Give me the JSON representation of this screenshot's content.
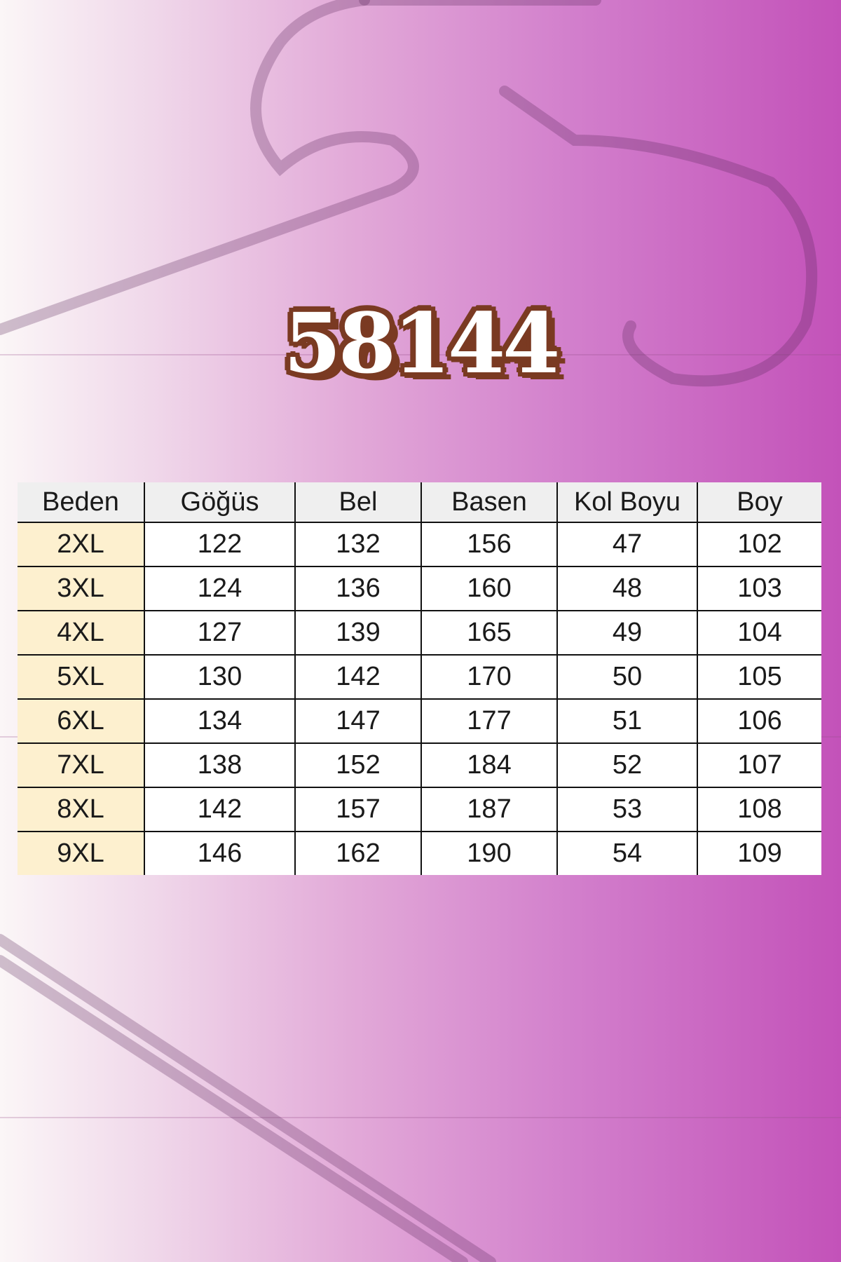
{
  "title": "58144",
  "colors": {
    "background_left": "#fbf6f7",
    "background_right": "#c352b9",
    "title_outline": "#7a3a22",
    "size_column": "#fdf0cf",
    "header": "#efefef"
  },
  "table": {
    "headers": [
      "Beden",
      "Göğüs",
      "Bel",
      "Basen",
      "Kol Boyu",
      "Boy"
    ],
    "rows": [
      [
        "2XL",
        "122",
        "132",
        "156",
        "47",
        "102"
      ],
      [
        "3XL",
        "124",
        "136",
        "160",
        "48",
        "103"
      ],
      [
        "4XL",
        "127",
        "139",
        "165",
        "49",
        "104"
      ],
      [
        "5XL",
        "130",
        "142",
        "170",
        "50",
        "105"
      ],
      [
        "6XL",
        "134",
        "147",
        "177",
        "51",
        "106"
      ],
      [
        "7XL",
        "138",
        "152",
        "184",
        "52",
        "107"
      ],
      [
        "8XL",
        "142",
        "157",
        "187",
        "53",
        "108"
      ],
      [
        "9XL",
        "146",
        "162",
        "190",
        "54",
        "109"
      ]
    ]
  }
}
